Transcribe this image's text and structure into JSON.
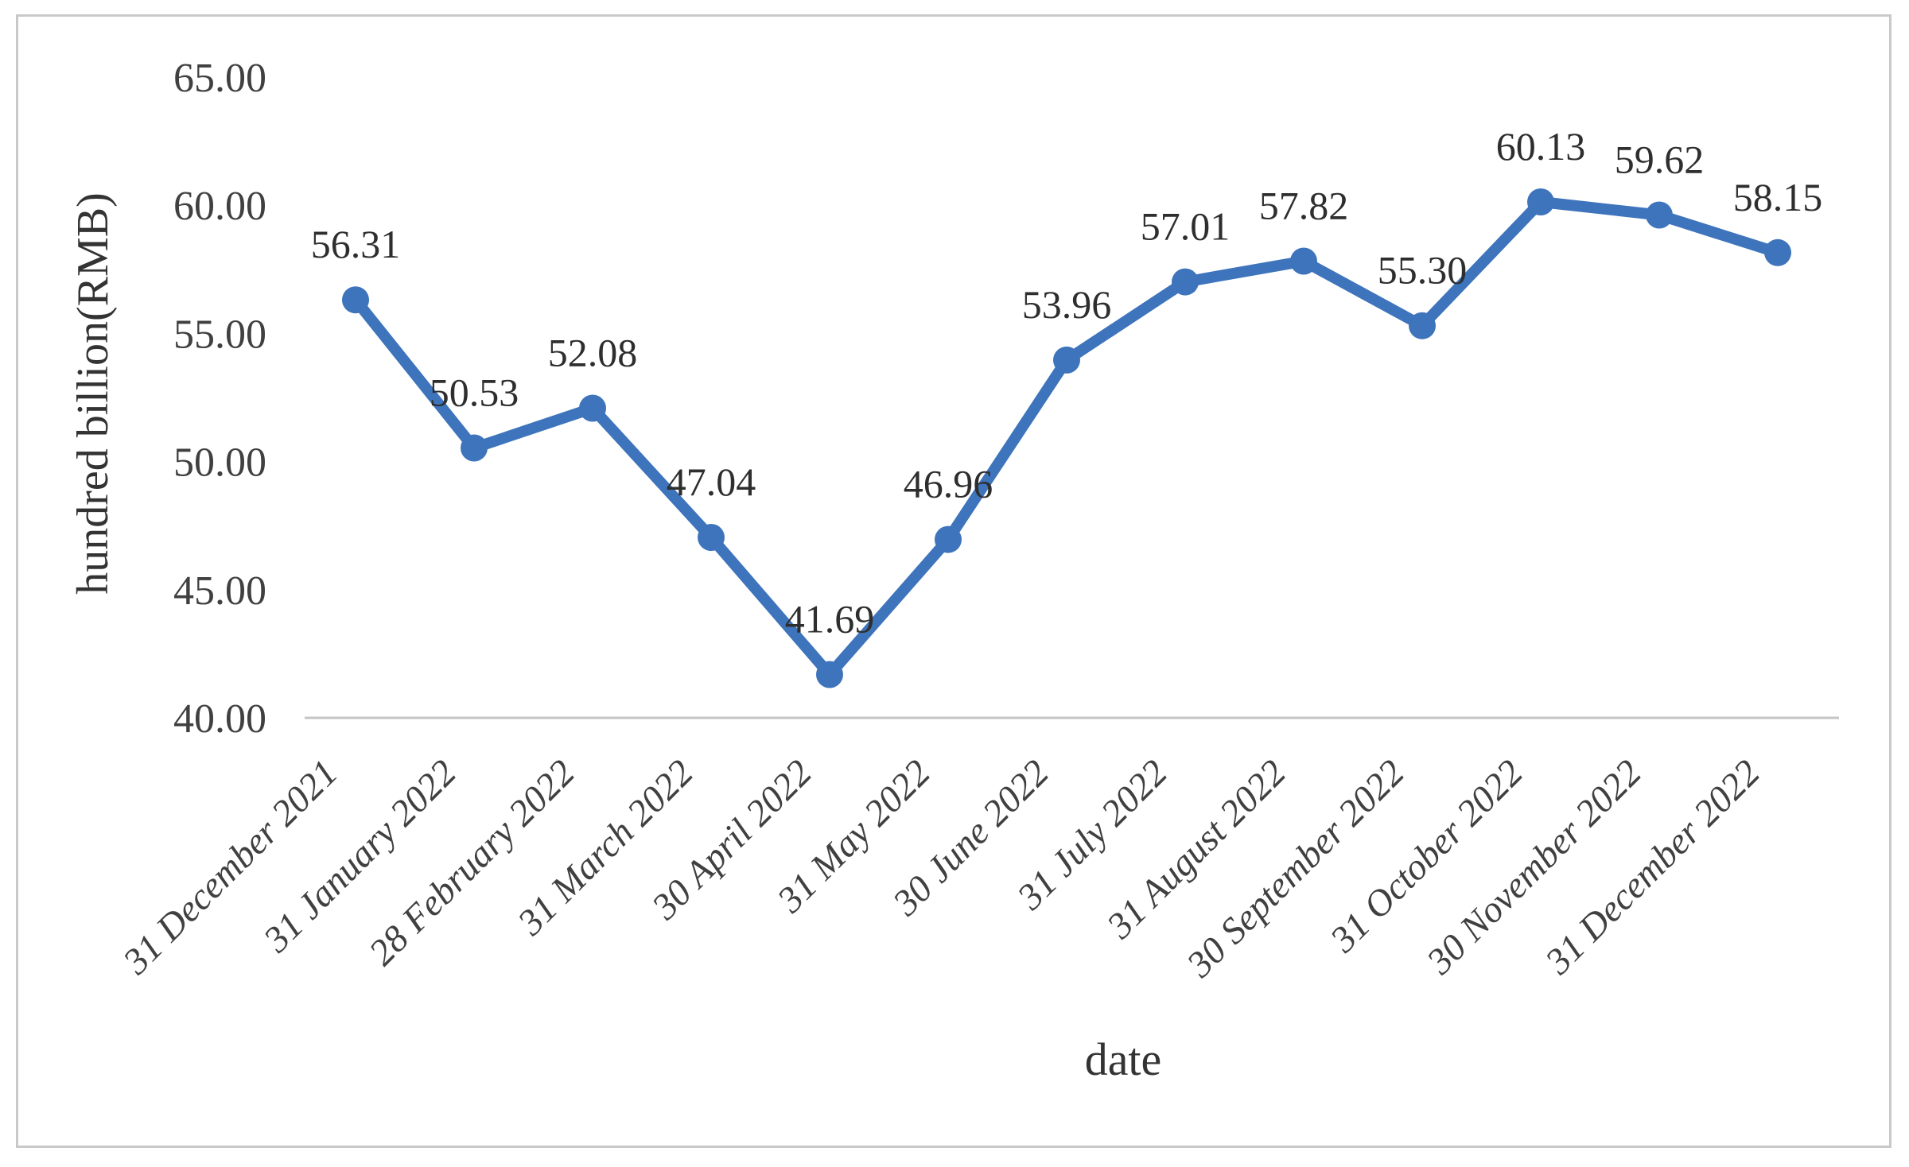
{
  "figure": {
    "description": "Line chart of monthly values in hundred billion RMB from 31 December 2021 to 31 December 2022",
    "border_color": "#c9c9c9",
    "background_color": "#ffffff"
  },
  "chart_data": {
    "type": "line",
    "title": "",
    "xlabel": "date",
    "ylabel": "hundred billion(RMB)",
    "categories": [
      "31 December 2021",
      "31 January 2022",
      "28 February 2022",
      "31 March 2022",
      "30 April 2022",
      "31 May 2022",
      "30 June 2022",
      "31 July 2022",
      "31 August 2022",
      "30 September 2022",
      "31 October 2022",
      "30 November 2022",
      "31 December 2022"
    ],
    "values": [
      56.31,
      50.53,
      52.08,
      47.04,
      41.69,
      46.96,
      53.96,
      57.01,
      57.82,
      55.3,
      60.13,
      59.62,
      58.15
    ],
    "point_labels": [
      "56.31",
      "50.53",
      "52.08",
      "47.04",
      "41.69",
      "46.96",
      "53.96",
      "57.01",
      "57.82",
      "55.30",
      "60.13",
      "59.62",
      "58.15"
    ],
    "series_name": "",
    "ylim": [
      40,
      65
    ],
    "y_ticks": [
      65,
      60,
      55,
      50,
      45,
      40
    ],
    "y_tick_labels": [
      "65.00",
      "60.00",
      "55.00",
      "50.00",
      "45.00",
      "40.00"
    ],
    "grid": false,
    "legend_position": "none",
    "line_color": "#3E74BC",
    "marker_color": "#3E74BC",
    "axis_line_color": "#c4c4c4",
    "tick_text_color": "#404040",
    "label_text_color": "#2e2e2e"
  }
}
